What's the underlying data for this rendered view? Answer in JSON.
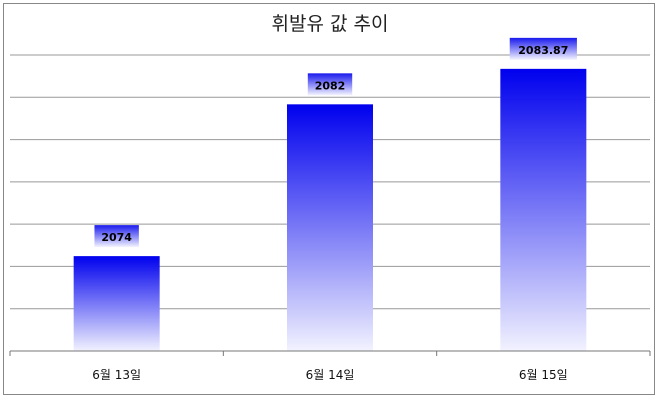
{
  "chart_data": {
    "type": "bar",
    "title": "휘발유 값 추이",
    "categories": [
      "6월 13일",
      "6월 14일",
      "6월 15일"
    ],
    "values": [
      2074,
      2082,
      2083.87
    ],
    "value_labels": [
      "2074",
      "2082",
      "2083.87"
    ],
    "ylim": [
      2069,
      2084.6
    ],
    "grid": true,
    "legend": "none",
    "colors": {
      "bar_top": "#0000ee",
      "bar_bottom": "#f2f2ff",
      "label_tab": "#1a1aee",
      "grid": "#999999",
      "axis": "#777777"
    }
  }
}
